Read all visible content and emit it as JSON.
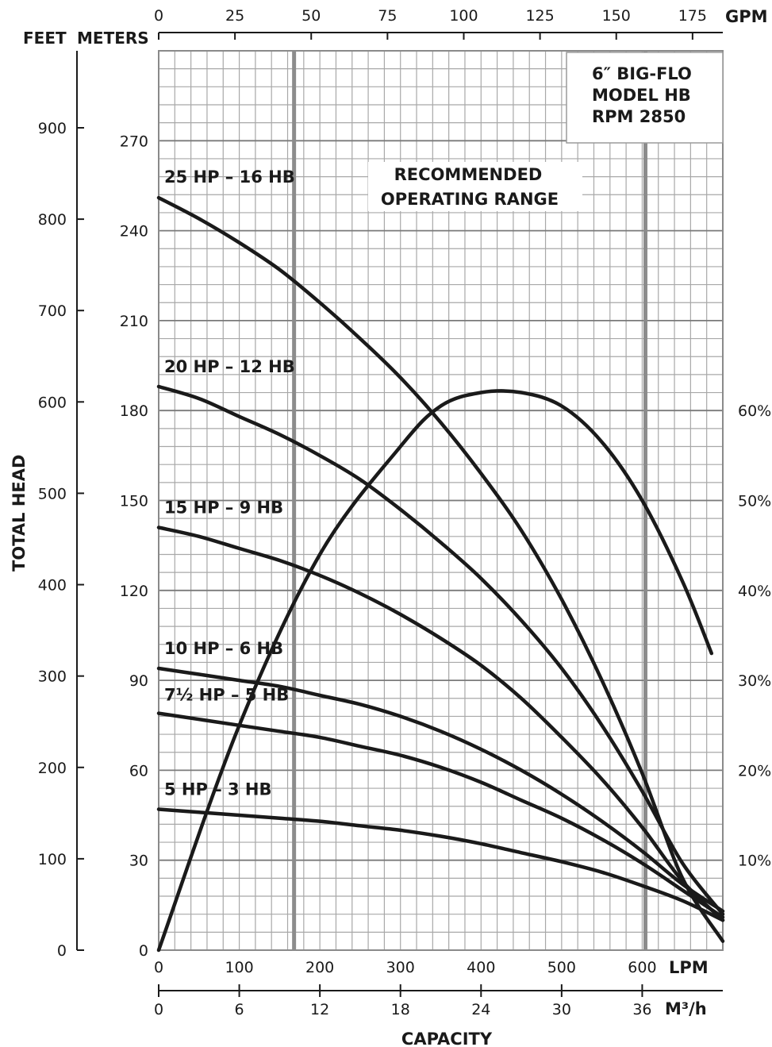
{
  "chart_data": {
    "type": "line",
    "title_lines": [
      "6″ BIG-FLO",
      "MODEL HB",
      "RPM 2850"
    ],
    "annotation_lines": [
      "RECOMMENDED",
      "OPERATING RANGE"
    ],
    "ylabel": "TOTAL HEAD",
    "xlabel": "CAPACITY",
    "y_unit_feet": "FEET",
    "y_unit_meters": "METERS",
    "x_unit_gpm": "GPM",
    "x_unit_lpm": "LPM",
    "x_unit_m3h": "M³/h",
    "xlim_lpm": [
      0,
      700
    ],
    "ylim_meters": [
      0,
      300
    ],
    "grid": true,
    "meters_ticks": [
      "0",
      "30",
      "60",
      "90",
      "120",
      "150",
      "180",
      "210",
      "240",
      "270"
    ],
    "feet_ticks": [
      "0",
      "100",
      "200",
      "300",
      "400",
      "500",
      "600",
      "700",
      "800",
      "900"
    ],
    "lpm_ticks": [
      "0",
      "100",
      "200",
      "300",
      "400",
      "500",
      "600"
    ],
    "gpm_ticks": [
      "0",
      "25",
      "50",
      "75",
      "100",
      "125",
      "150",
      "175"
    ],
    "m3h_ticks": [
      "0",
      "6",
      "12",
      "18",
      "24",
      "30",
      "36"
    ],
    "efficiency_ticks": [
      "10%",
      "20%",
      "30%",
      "40%",
      "50%",
      "60%"
    ],
    "recommended_range_lpm": [
      168,
      604
    ],
    "series": [
      {
        "name": "25 HP – 16 HB",
        "x": [
          0,
          50,
          100,
          150,
          200,
          250,
          300,
          350,
          400,
          450,
          500,
          550,
          600,
          650,
          700
        ],
        "y": [
          251,
          244,
          236,
          227,
          216,
          204,
          191,
          176,
          159,
          140,
          117,
          90,
          59,
          24,
          3
        ]
      },
      {
        "name": "20 HP – 12 HB",
        "x": [
          0,
          50,
          100,
          150,
          200,
          250,
          300,
          350,
          400,
          450,
          500,
          550,
          600,
          650,
          700
        ],
        "y": [
          188,
          184,
          178,
          172,
          165,
          157,
          147,
          136,
          124,
          110,
          94,
          75,
          53,
          29,
          12
        ]
      },
      {
        "name": "15 HP – 9 HB",
        "x": [
          0,
          50,
          100,
          150,
          200,
          250,
          300,
          350,
          400,
          450,
          500,
          550,
          600,
          650,
          700
        ],
        "y": [
          141,
          138,
          134,
          130,
          125,
          119,
          112,
          104,
          95,
          84,
          71,
          57,
          41,
          23,
          10
        ]
      },
      {
        "name": "10 HP – 6 HB",
        "x": [
          0,
          50,
          100,
          150,
          200,
          250,
          300,
          350,
          400,
          450,
          500,
          550,
          600,
          650,
          700
        ],
        "y": [
          94,
          92,
          90,
          88,
          85,
          82,
          78,
          73,
          67,
          60,
          52,
          43,
          33,
          22,
          13
        ]
      },
      {
        "name": "7½ HP – 5 HB",
        "x": [
          0,
          50,
          100,
          150,
          200,
          250,
          300,
          350,
          400,
          450,
          500,
          550,
          600,
          650,
          700
        ],
        "y": [
          79,
          77,
          75,
          73,
          71,
          68,
          65,
          61,
          56,
          50,
          44,
          37,
          29,
          20,
          11
        ]
      },
      {
        "name": "5 HP – 3 HB",
        "x": [
          0,
          50,
          100,
          150,
          200,
          250,
          300,
          350,
          400,
          450,
          500,
          550,
          600,
          650,
          700
        ],
        "y": [
          47,
          46,
          45,
          44,
          43,
          41.5,
          40,
          38,
          35.5,
          32.5,
          29.5,
          26,
          21.5,
          16.5,
          10
        ]
      }
    ],
    "efficiency_series": {
      "x": [
        0,
        100,
        200,
        300,
        350,
        400,
        450,
        500,
        550,
        600,
        650,
        686
      ],
      "y": [
        0,
        25,
        44,
        56,
        60.5,
        62,
        62,
        60.5,
        56.5,
        50,
        41,
        33
      ]
    }
  }
}
